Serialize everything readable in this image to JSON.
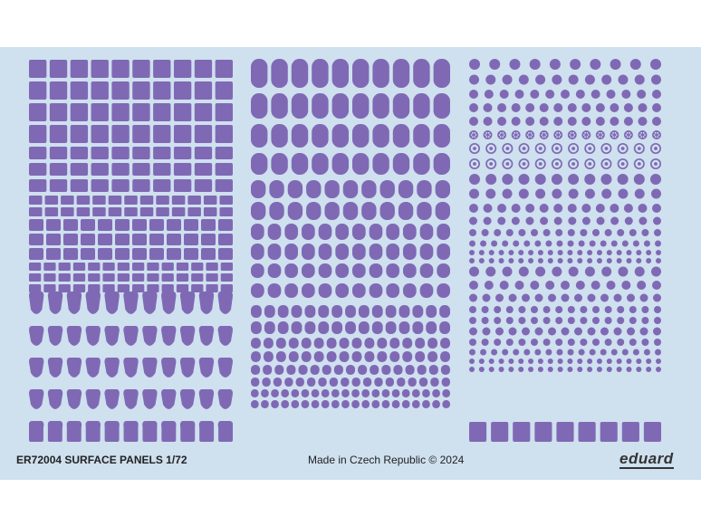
{
  "product": {
    "code_title": "ER72004 SURFACE PANELS 1/72",
    "origin": "Made in Czech Republic",
    "copyright": "© 2024",
    "brand": "eduard"
  },
  "colors": {
    "background": "#ffffff",
    "sheet": "#cfe0ef",
    "panel": "#7f69b4",
    "panel_ring": "#6f5aa4",
    "hole_fill": "#cfe0ef"
  },
  "sheet_sections": {
    "left": "rectangular and rounded panels",
    "middle": "oval panels",
    "right": "round panels and inspection ports"
  }
}
